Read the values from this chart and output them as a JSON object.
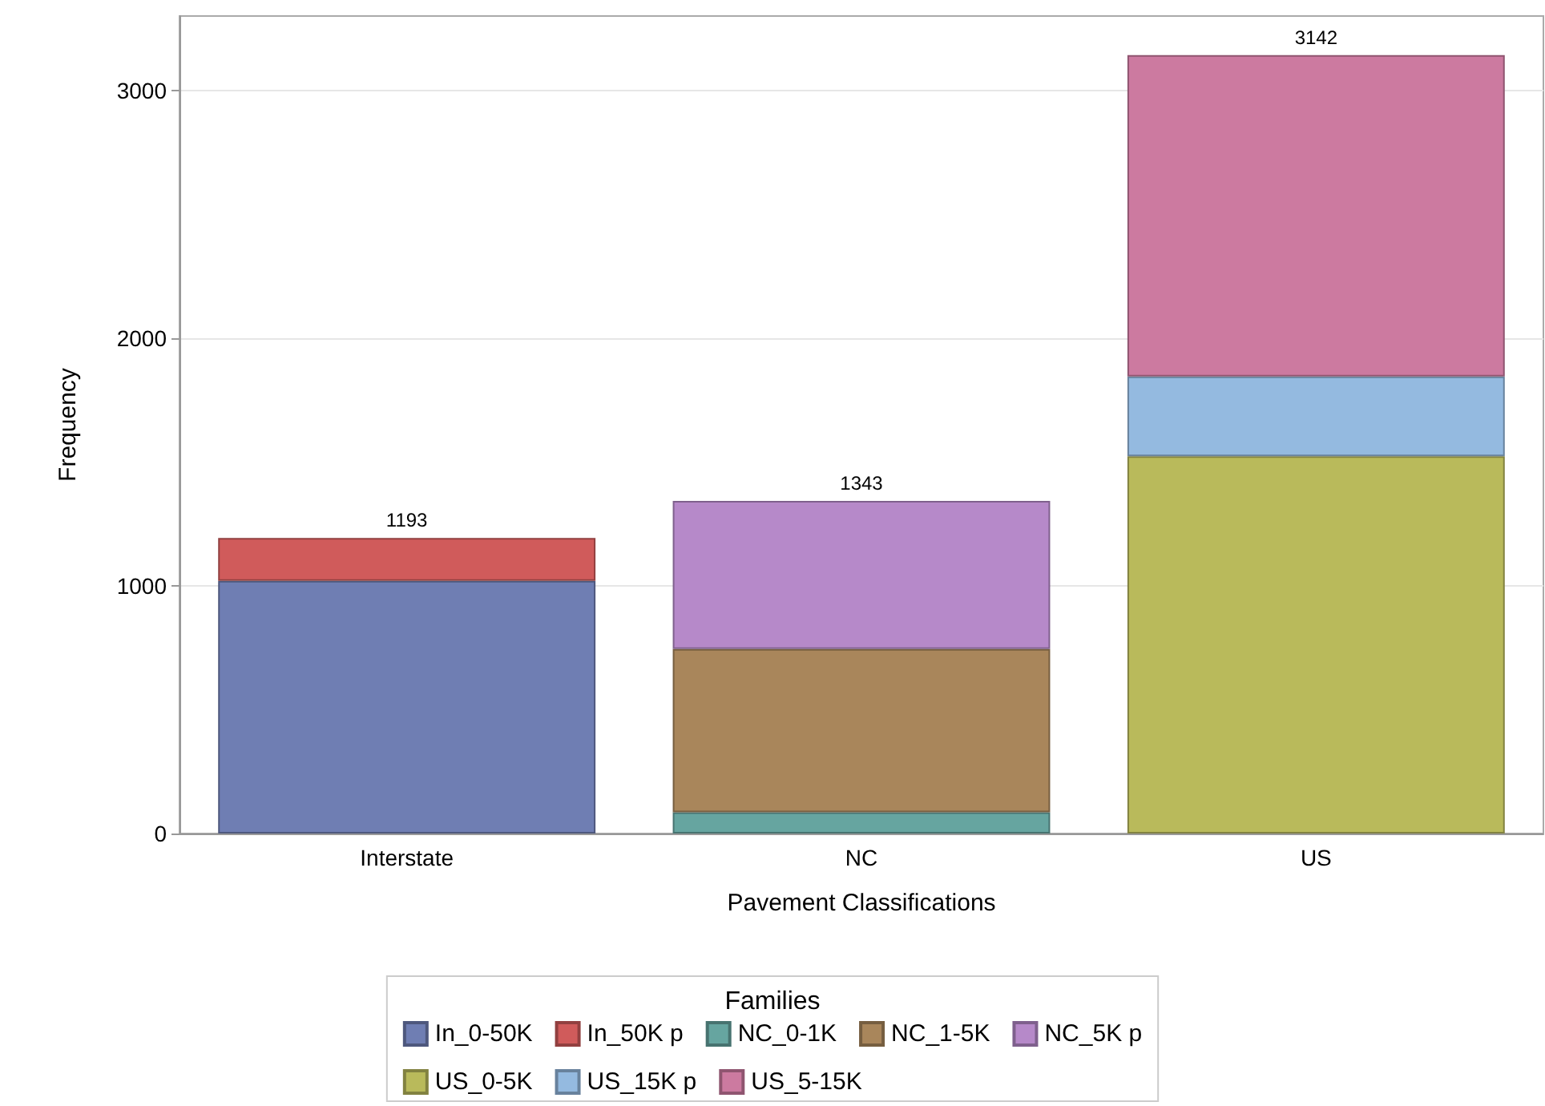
{
  "chart_data": {
    "type": "bar",
    "stacked": true,
    "xlabel": "Pavement Classifications",
    "ylabel": "Frequency",
    "legend_title": "Families",
    "legend": "bottom",
    "grid": "y",
    "categories": [
      "Interstate",
      "NC",
      "US"
    ],
    "ylim": [
      0,
      3300
    ],
    "yticks": [
      0,
      1000,
      2000,
      3000
    ],
    "totals": [
      "1193",
      "1343",
      "3142"
    ],
    "series": [
      {
        "name": "In_0-50K",
        "color": "#6f7eb3",
        "values": [
          1020,
          null,
          null
        ]
      },
      {
        "name": "In_50K p",
        "color": "#d05b5b",
        "values": [
          173,
          null,
          null
        ]
      },
      {
        "name": "NC_0-1K",
        "color": "#66a5a0",
        "values": [
          null,
          86,
          null
        ]
      },
      {
        "name": "NC_1-5K",
        "color": "#a9865b",
        "values": [
          null,
          659,
          null
        ]
      },
      {
        "name": "NC_5K p",
        "color": "#b689c9",
        "values": [
          null,
          598,
          null
        ]
      },
      {
        "name": "US_0-5K",
        "color": "#b9ba5b",
        "values": [
          null,
          null,
          1523
        ]
      },
      {
        "name": "US_15K p",
        "color": "#94bae0",
        "values": [
          null,
          null,
          322
        ]
      },
      {
        "name": "US_5-15K",
        "color": "#cc7aa0",
        "values": [
          null,
          null,
          1297
        ]
      }
    ]
  }
}
